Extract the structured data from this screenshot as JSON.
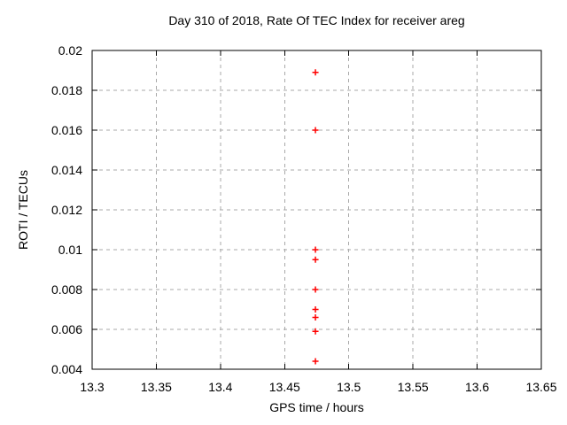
{
  "chart_data": {
    "type": "scatter",
    "title": "Day 310 of 2018, Rate Of TEC Index for receiver areg",
    "xlabel": "GPS time / hours",
    "ylabel": "ROTI / TECUs",
    "xlim": [
      13.3,
      13.65
    ],
    "ylim": [
      0.004,
      0.02
    ],
    "x_ticks": [
      {
        "v": 13.3,
        "label": "13.3"
      },
      {
        "v": 13.35,
        "label": "13.35"
      },
      {
        "v": 13.4,
        "label": "13.4"
      },
      {
        "v": 13.45,
        "label": "13.45"
      },
      {
        "v": 13.5,
        "label": "13.5"
      },
      {
        "v": 13.55,
        "label": "13.55"
      },
      {
        "v": 13.6,
        "label": "13.6"
      },
      {
        "v": 13.65,
        "label": "13.65"
      }
    ],
    "y_ticks": [
      {
        "v": 0.004,
        "label": "0.004"
      },
      {
        "v": 0.006,
        "label": "0.006"
      },
      {
        "v": 0.008,
        "label": "0.008"
      },
      {
        "v": 0.01,
        "label": "0.01"
      },
      {
        "v": 0.012,
        "label": "0.012"
      },
      {
        "v": 0.014,
        "label": "0.014"
      },
      {
        "v": 0.016,
        "label": "0.016"
      },
      {
        "v": 0.018,
        "label": "0.018"
      },
      {
        "v": 0.02,
        "label": "0.02"
      }
    ],
    "grid": "dashed",
    "legend_position": "none",
    "marker": "plus",
    "marker_color": "#ff0000",
    "grid_color": "#a8a8a8",
    "axis_color": "#000000",
    "background_color": "#ffffff",
    "series": [
      {
        "name": "ROTI",
        "points": [
          {
            "x": 13.474,
            "y": 0.0189
          },
          {
            "x": 13.474,
            "y": 0.016
          },
          {
            "x": 13.474,
            "y": 0.01
          },
          {
            "x": 13.474,
            "y": 0.0095
          },
          {
            "x": 13.474,
            "y": 0.008
          },
          {
            "x": 13.474,
            "y": 0.007
          },
          {
            "x": 13.474,
            "y": 0.0066
          },
          {
            "x": 13.474,
            "y": 0.0059
          },
          {
            "x": 13.474,
            "y": 0.0044
          }
        ]
      }
    ]
  }
}
